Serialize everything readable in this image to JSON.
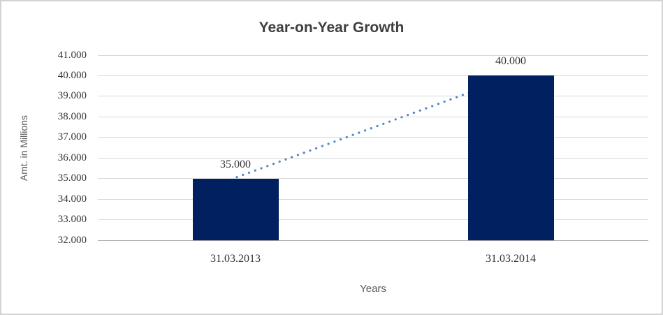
{
  "chart_data": {
    "type": "bar",
    "title": "Year-on-Year Growth",
    "xlabel": "Years",
    "ylabel": "Amt. in Millions",
    "categories": [
      "31.03.2013",
      "31.03.2014"
    ],
    "values": [
      35000,
      40000
    ],
    "value_labels": [
      "35.000",
      "40.000"
    ],
    "y_ticks": [
      32000,
      33000,
      34000,
      35000,
      36000,
      37000,
      38000,
      39000,
      40000,
      41000
    ],
    "y_tick_labels": [
      "32.000",
      "33.000",
      "34.000",
      "35.000",
      "36.000",
      "37.000",
      "38.000",
      "39.000",
      "40.000",
      "41.000"
    ],
    "ylim": [
      32000,
      41000
    ],
    "grid": "horizontal",
    "legend": "none",
    "trendline": {
      "style": "dotted",
      "from_category": "31.03.2013",
      "to_category": "31.03.2014"
    },
    "colors": {
      "bar_fill": "#002060",
      "trend_dots": "#4f87c8",
      "gridline": "#d9d9d9",
      "axis_line": "#a6a6a6",
      "title_text": "#3f3f3f",
      "axis_title_text": "#595959",
      "tick_text": "#333333",
      "frame_border": "#d3d3d3",
      "background": "#ffffff"
    }
  }
}
